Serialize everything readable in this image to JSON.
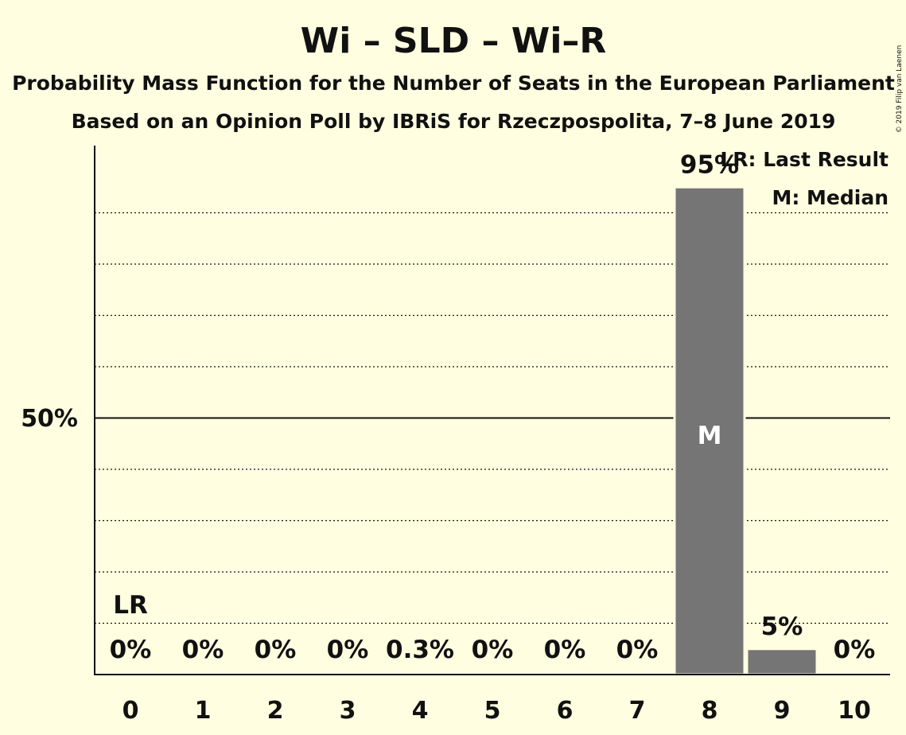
{
  "chart_data": {
    "type": "bar",
    "title": "Wi – SLD – Wi–R",
    "subtitle_1": "Probability Mass Function for the Number of Seats in the European Parliament",
    "subtitle_2": "Based on an Opinion Poll by IBRiS for Rzeczpospolita, 7–8 June 2019",
    "categories": [
      "0",
      "1",
      "2",
      "3",
      "4",
      "5",
      "6",
      "7",
      "8",
      "9",
      "10"
    ],
    "values": [
      0,
      0,
      0,
      0,
      0.3,
      0,
      0,
      0,
      95,
      5,
      0
    ],
    "value_labels": [
      "0%",
      "0%",
      "0%",
      "0%",
      "0.3%",
      "0%",
      "0%",
      "0%",
      "95%",
      "5%",
      "0%"
    ],
    "ylim": [
      0,
      100
    ],
    "y_major_tick": {
      "value": 50,
      "label": "50%"
    },
    "y_minor_gridlines": [
      10,
      20,
      30,
      40,
      60,
      70,
      80,
      90
    ],
    "last_result": {
      "seat": "0",
      "label": "LR"
    },
    "median": {
      "seat": "8",
      "label": "M"
    },
    "legend": [
      "LR: Last Result",
      "M: Median"
    ],
    "legend_position": "top-right",
    "copyright": "© 2019 Filip van Laenen",
    "colors": {
      "background": "#FFFEE0",
      "bar": "#757575",
      "text": "#111111",
      "median_label": "#FFFFFF"
    }
  }
}
